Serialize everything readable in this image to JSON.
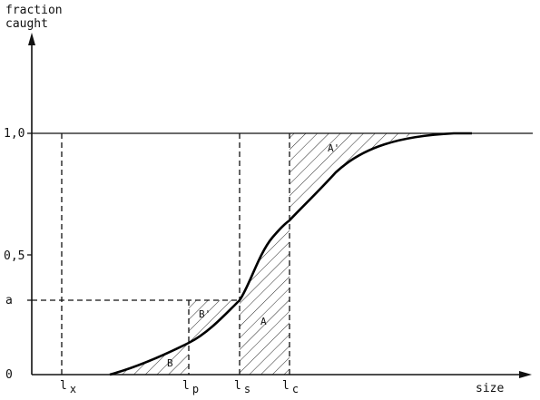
{
  "axes": {
    "y_title_line1": "fraction",
    "y_title_line2": "caught",
    "x_title": "size"
  },
  "y_ticks": [
    {
      "label": "1,0",
      "value": 1.0
    },
    {
      "label": "0,5",
      "value": 0.5
    },
    {
      "label": "a",
      "value": 0.31
    },
    {
      "label": "0",
      "value": 0
    }
  ],
  "x_marks": [
    {
      "key": "lx",
      "base": "l",
      "sub": "x"
    },
    {
      "key": "lp",
      "base": "l",
      "sub": "p"
    },
    {
      "key": "ls",
      "base": "l",
      "sub": "s"
    },
    {
      "key": "lc",
      "base": "l",
      "sub": "c"
    }
  ],
  "areas": {
    "B": "B",
    "B_prime": "B'",
    "A": "A",
    "A_prime": "A'"
  }
}
